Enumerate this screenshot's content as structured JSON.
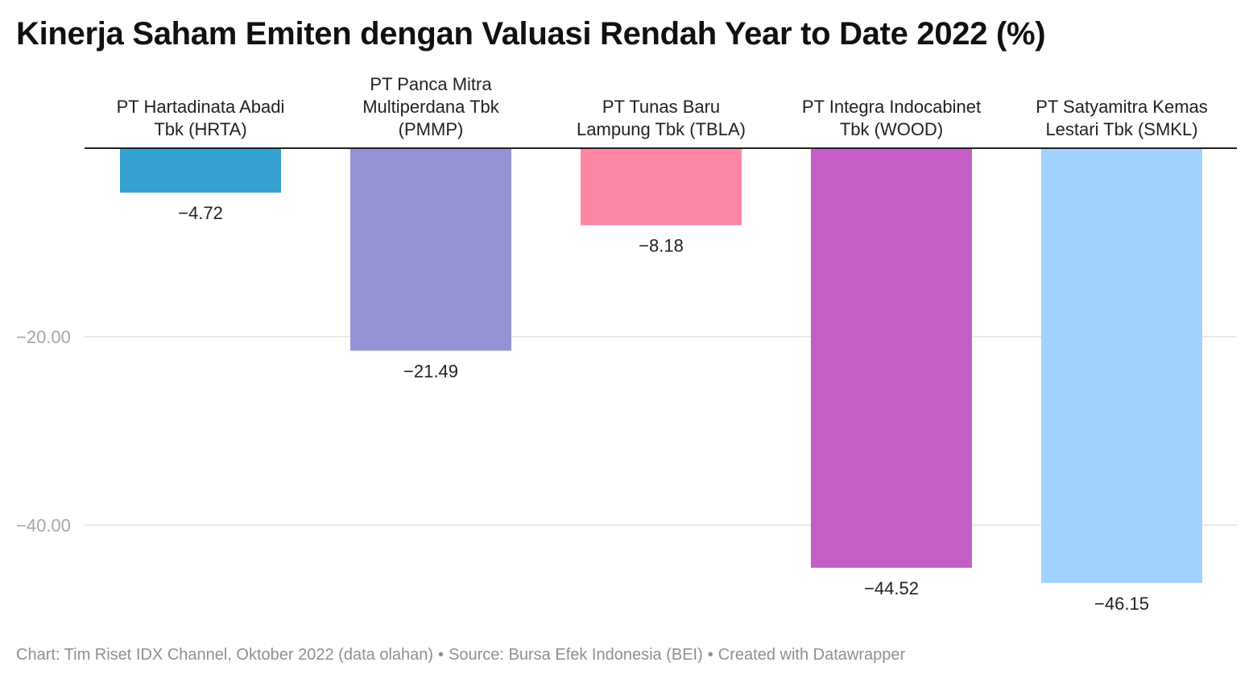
{
  "title": "Kinerja Saham Emiten dengan Valuasi Rendah Year to Date 2022 (%)",
  "footer": {
    "chart_credit": "Chart: Tim Riset IDX Channel, Oktober 2022 (data olahan)",
    "separator": "•",
    "source": "Source: Bursa Efek Indonesia (BEI)",
    "created_with": "Created with Datawrapper"
  },
  "chart_data": {
    "type": "bar",
    "orientation": "vertical",
    "categories": [
      [
        "PT Hartadinata Abadi",
        "Tbk (HRTA)"
      ],
      [
        "PT Panca Mitra",
        "Multiperdana Tbk",
        "(PMMP)"
      ],
      [
        "PT Tunas Baru",
        "Lampung Tbk (TBLA)"
      ],
      [
        "PT Integra Indocabinet",
        "Tbk (WOOD)"
      ],
      [
        "PT Satyamitra Kemas",
        "Lestari Tbk (SMKL)"
      ]
    ],
    "values": [
      -4.72,
      -21.49,
      -8.18,
      -44.52,
      -46.15
    ],
    "value_labels": [
      "−4.72",
      "−21.49",
      "−8.18",
      "−44.52",
      "−46.15"
    ],
    "colors": [
      "#34a3d1",
      "#9593d4",
      "#fe86a5",
      "#c45ec4",
      "#a3d2fe"
    ],
    "yticks": [
      -20,
      -40
    ],
    "ytick_labels": [
      "−20.00",
      "−40.00"
    ],
    "ylim": [
      0,
      -50
    ],
    "grid": true,
    "category_labels_position": "top"
  }
}
